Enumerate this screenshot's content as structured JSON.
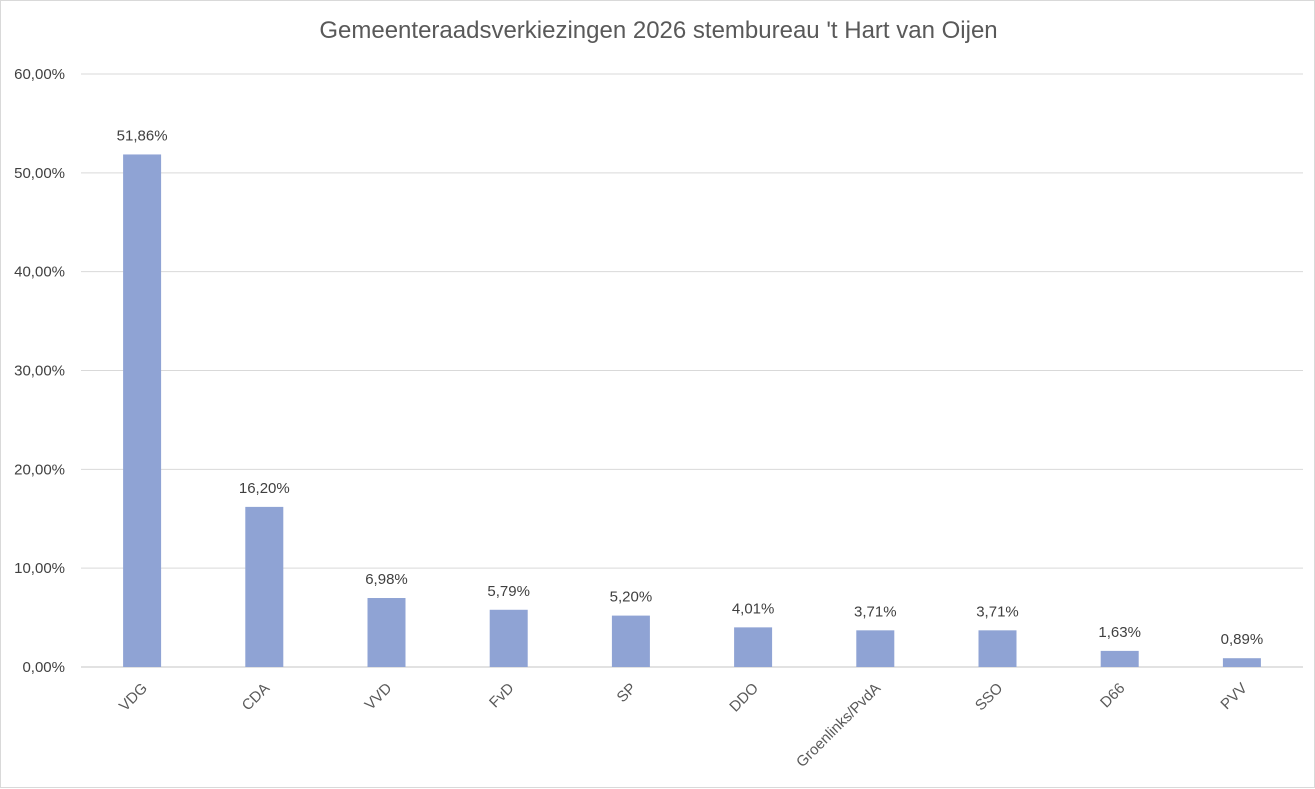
{
  "chart_data": {
    "type": "bar",
    "title": "Gemeenteraadsverkiezingen 2026 stembureau 't Hart van Oijen",
    "xlabel": "",
    "ylabel": "",
    "ylim": [
      0,
      60
    ],
    "yticks": [
      "0,00%",
      "10,00%",
      "20,00%",
      "30,00%",
      "40,00%",
      "50,00%",
      "60,00%"
    ],
    "categories": [
      "VDG",
      "CDA",
      "VVD",
      "FvD",
      "SP",
      "DDO",
      "Groenlinks/PvdA",
      "SSO",
      "D66",
      "PVV"
    ],
    "values": [
      51.86,
      16.2,
      6.98,
      5.79,
      5.2,
      4.01,
      3.71,
      3.71,
      1.63,
      0.89
    ],
    "data_labels": [
      "51,86%",
      "16,20%",
      "6,98%",
      "5,79%",
      "5,20%",
      "4,01%",
      "3,71%",
      "3,71%",
      "1,63%",
      "0,89%"
    ],
    "grid": true,
    "legend": "none",
    "bar_color": "#8FA3D4",
    "grid_color": "#d9d9d9"
  }
}
